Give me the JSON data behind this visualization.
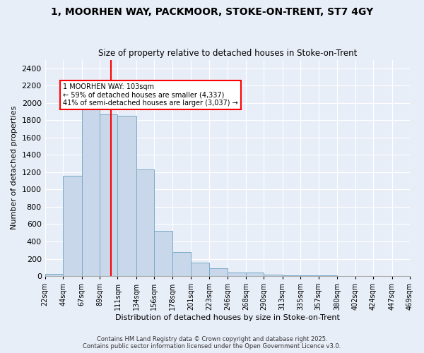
{
  "title_line1": "1, MOORHEN WAY, PACKMOOR, STOKE-ON-TRENT, ST7 4GY",
  "title_line2": "Size of property relative to detached houses in Stoke-on-Trent",
  "xlabel": "Distribution of detached houses by size in Stoke-on-Trent",
  "ylabel": "Number of detached properties",
  "bin_edges": [
    22,
    44,
    67,
    89,
    111,
    134,
    156,
    178,
    201,
    223,
    246,
    268,
    290,
    313,
    335,
    357,
    380,
    402,
    424,
    447,
    469
  ],
  "bar_heights": [
    25,
    1160,
    1960,
    1870,
    1850,
    1230,
    520,
    280,
    155,
    90,
    45,
    45,
    20,
    10,
    5,
    5,
    3,
    3,
    2,
    2
  ],
  "property_size": 103,
  "bar_color": "#c8d8ea",
  "bar_edge_color": "#7aaac8",
  "vline_color": "red",
  "annotation_text": "1 MOORHEN WAY: 103sqm\n← 59% of detached houses are smaller (4,337)\n41% of semi-detached houses are larger (3,037) →",
  "annotation_box_color": "white",
  "annotation_box_edge_color": "red",
  "ylim": [
    0,
    2500
  ],
  "yticks": [
    0,
    200,
    400,
    600,
    800,
    1000,
    1200,
    1400,
    1600,
    1800,
    2000,
    2200,
    2400
  ],
  "bg_color": "#e8eef8",
  "grid_color": "white",
  "footer_line1": "Contains HM Land Registry data © Crown copyright and database right 2025.",
  "footer_line2": "Contains public sector information licensed under the Open Government Licence v3.0."
}
